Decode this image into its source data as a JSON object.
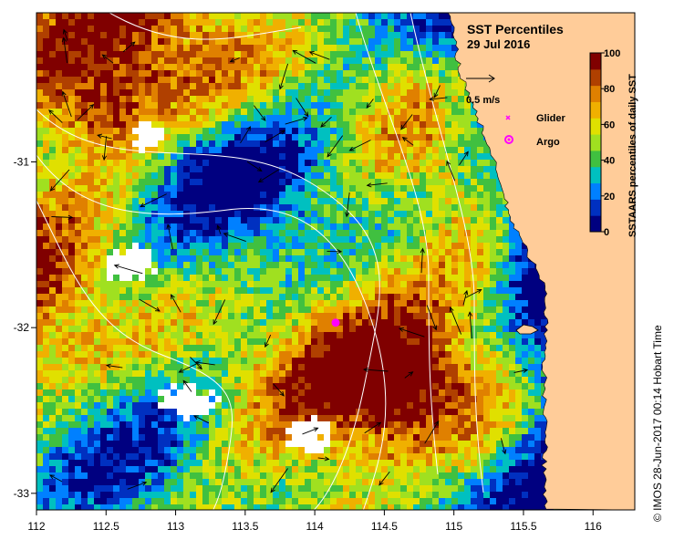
{
  "title": "SST Percentiles",
  "date": "29 Jul 2016",
  "scale_label": "0.5 m/s",
  "legend": {
    "glider": "Glider",
    "argo": "Argo",
    "glider_color": "#ff00ff",
    "argo_color": "#ff00ff"
  },
  "colorbar": {
    "label": "SSTAARS percentiles of daily SST",
    "ticks": [
      "0",
      "20",
      "40",
      "60",
      "80",
      "100"
    ],
    "colors": [
      "#000080",
      "#0030c0",
      "#0080ff",
      "#00c0c0",
      "#40c040",
      "#a0e020",
      "#e0e000",
      "#f0b000",
      "#e08000",
      "#b04000",
      "#800000"
    ]
  },
  "x_axis": {
    "ticks": [
      "112",
      "112.5",
      "113",
      "113.5",
      "114",
      "114.5",
      "115",
      "115.5",
      "116"
    ],
    "range": [
      112,
      116.3
    ]
  },
  "y_axis": {
    "ticks": [
      "-31",
      "-32",
      "-33"
    ],
    "range": [
      -33.1,
      -30.1
    ]
  },
  "credit": "© IMOS 28-Jun-2017 00:14 Hobart Time",
  "colors": {
    "land": "#ffcc99",
    "missing": "#ffffff",
    "contour": "#ffffff",
    "marker": "#ff00ff"
  },
  "argo_position": {
    "lon": 114.15,
    "lat": -31.97
  }
}
